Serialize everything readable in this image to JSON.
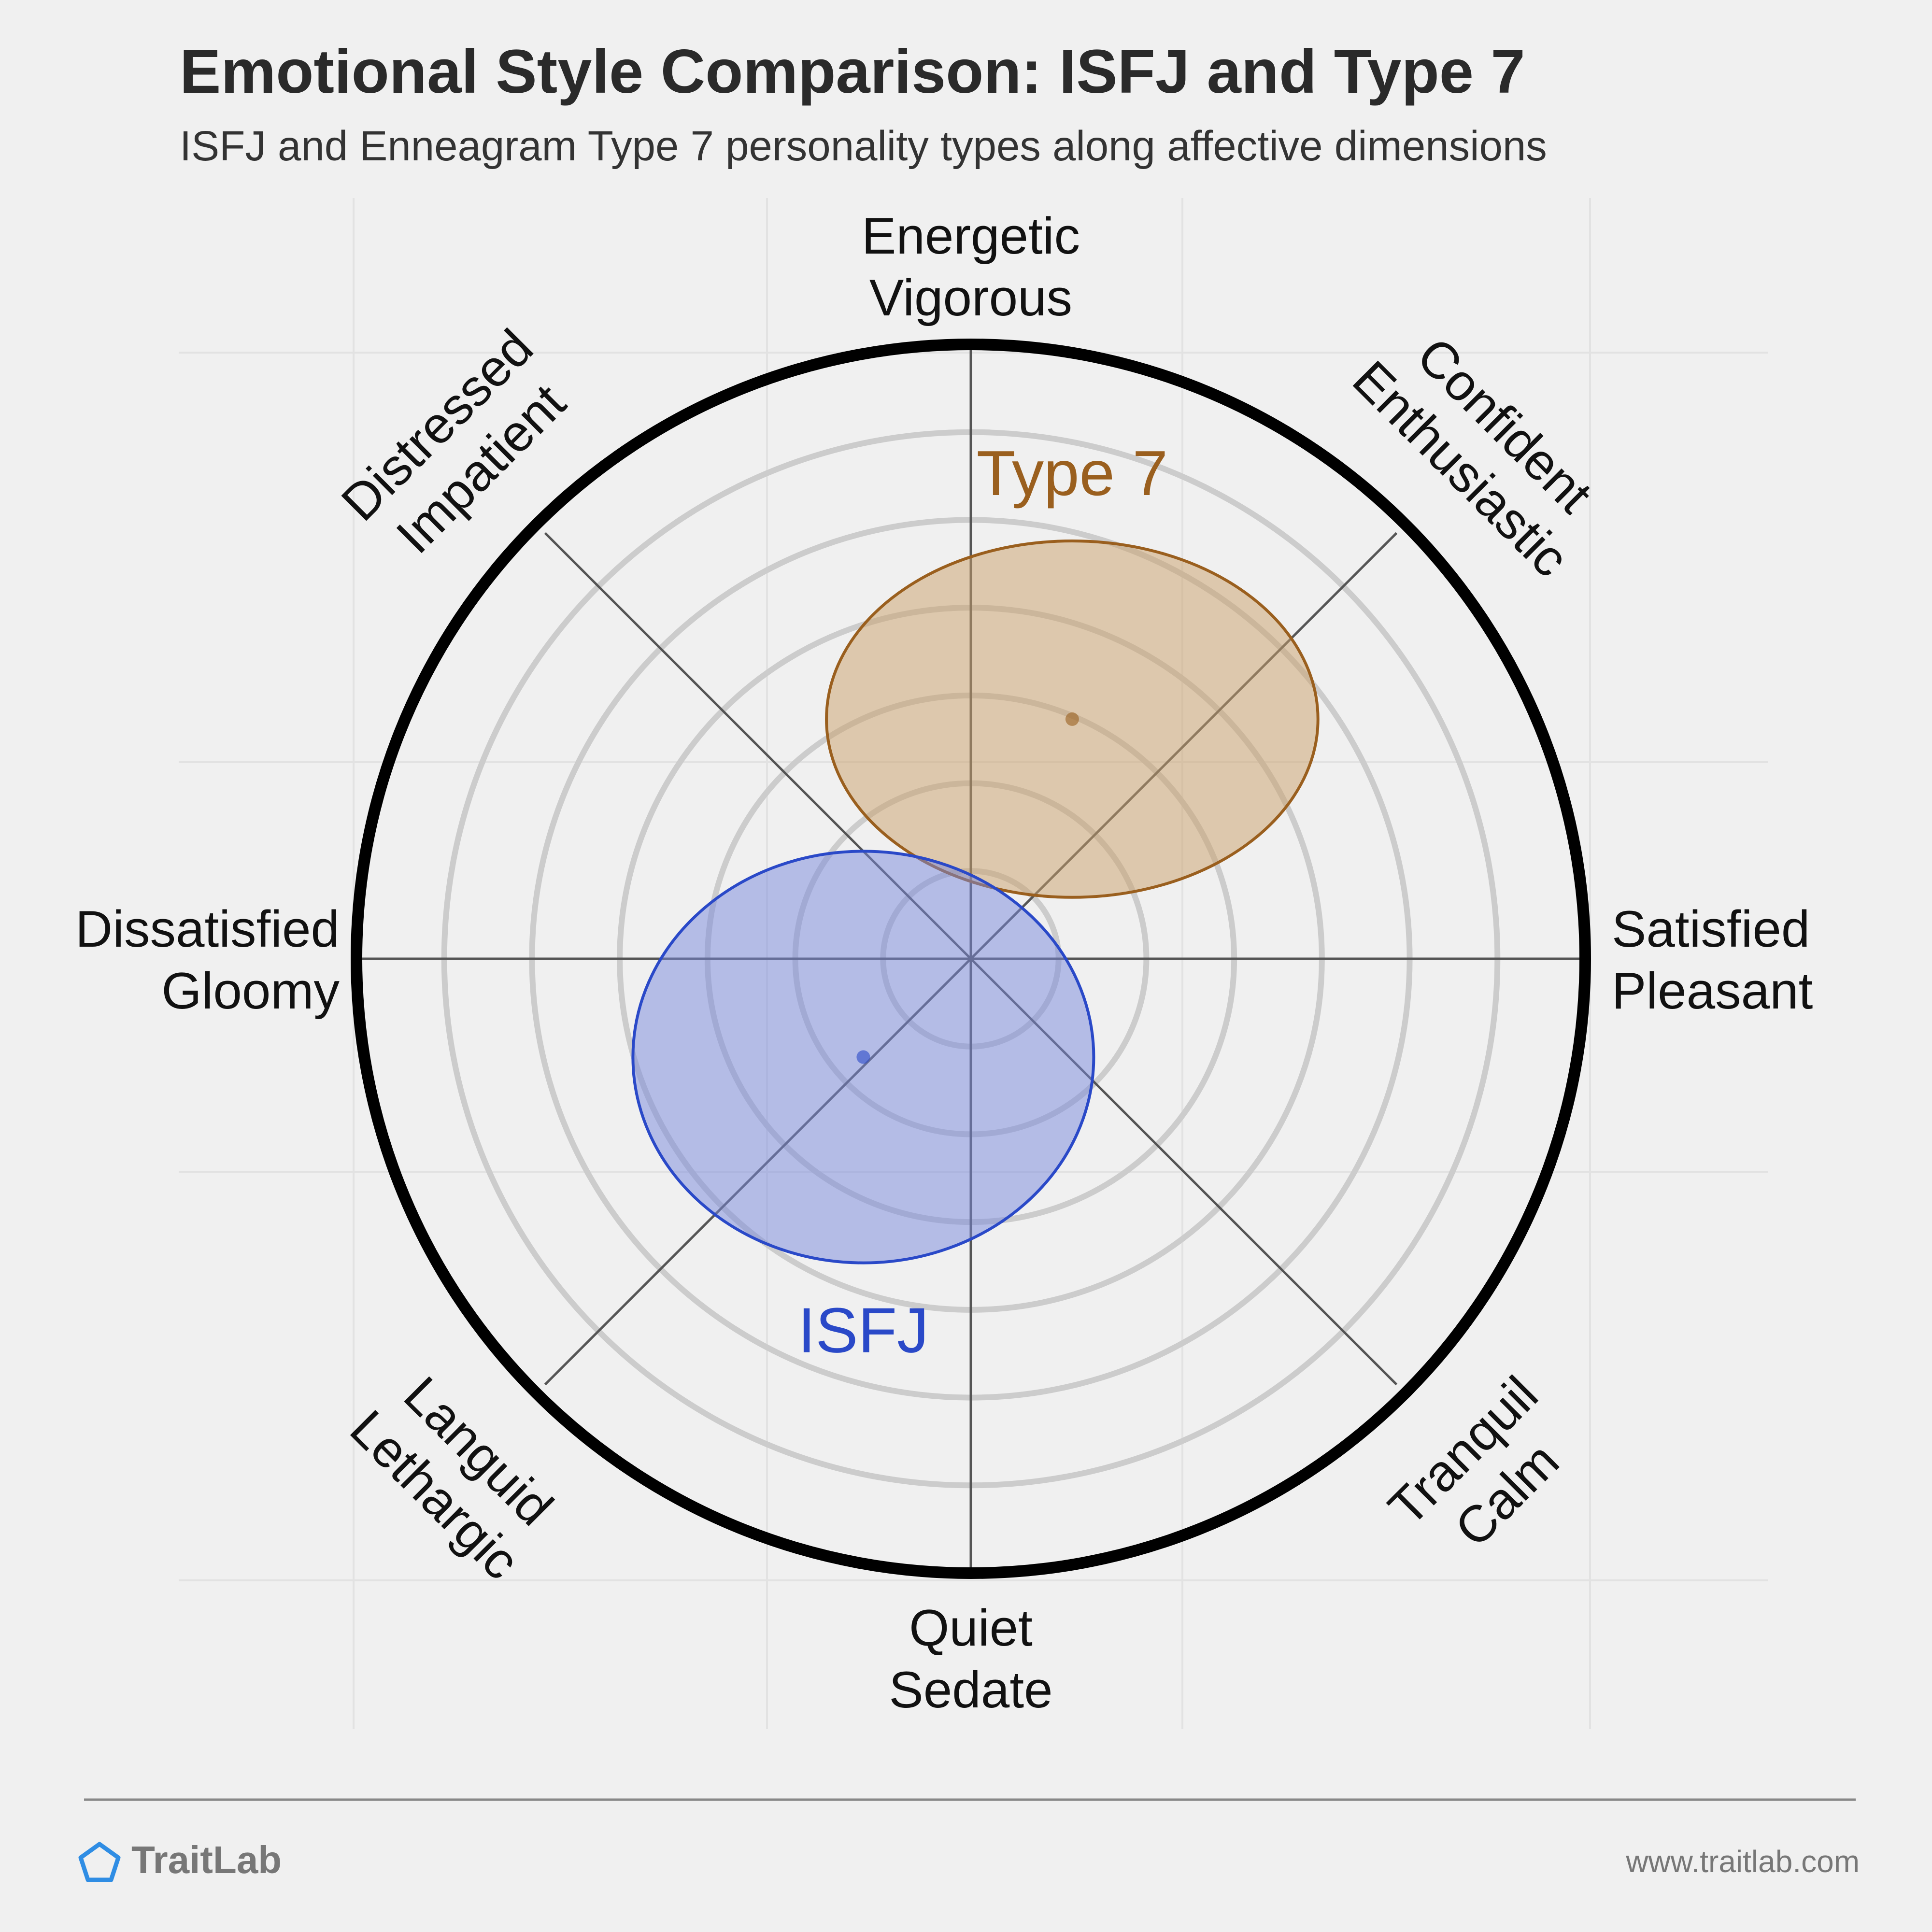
{
  "chart_data": {
    "type": "circumplex",
    "title": "Emotional Style Comparison: ISFJ and Type 7",
    "subtitle": "ISFJ and Enneagram Type 7 personality types along affective dimensions",
    "axes": [
      {
        "direction": "top",
        "lines": [
          "Energetic",
          "Vigorous"
        ]
      },
      {
        "direction": "top-right",
        "lines": [
          "Confident",
          "Enthusiastic"
        ]
      },
      {
        "direction": "right",
        "lines": [
          "Satisfied",
          "Pleasant"
        ]
      },
      {
        "direction": "bottom-right",
        "lines": [
          "Tranquil",
          "Calm"
        ]
      },
      {
        "direction": "bottom",
        "lines": [
          "Quiet",
          "Sedate"
        ]
      },
      {
        "direction": "bottom-left",
        "lines": [
          "Languid",
          "Lethargic"
        ]
      },
      {
        "direction": "left",
        "lines": [
          "Dissatisfied",
          "Gloomy"
        ]
      },
      {
        "direction": "top-left",
        "lines": [
          "Distressed",
          "Impatient"
        ]
      }
    ],
    "x_range": [
      -1,
      1
    ],
    "y_range": [
      -1,
      1
    ],
    "rings": 6,
    "series": [
      {
        "name": "Type 7",
        "x": 0.165,
        "y": 0.39,
        "spread_x": 0.4,
        "spread_y": 0.29,
        "color": "#9a5f1e",
        "fill": "#c9a06a"
      },
      {
        "name": "ISFJ",
        "x": -0.175,
        "y": -0.16,
        "spread_x": 0.375,
        "spread_y": 0.335,
        "color": "#2a49c8",
        "fill": "#7787db"
      }
    ]
  },
  "footer": {
    "brand": "TraitLab",
    "url": "www.traitlab.com"
  }
}
